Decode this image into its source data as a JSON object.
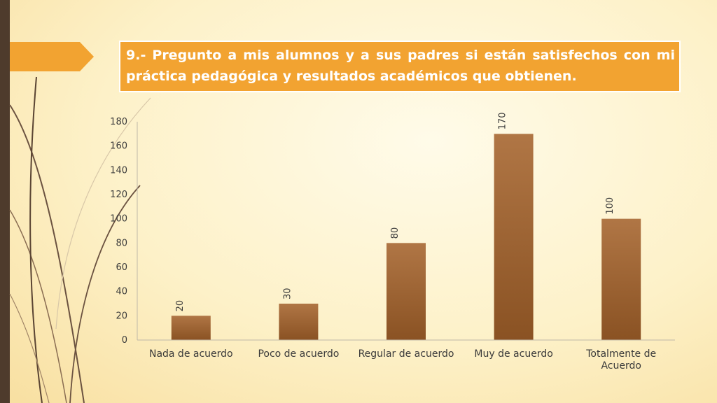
{
  "slide": {
    "title": "9.-  Pregunto a mis alumnos y a sus padres si están satisfechos con mi práctica pedagógica y resultados académicos que obtienen."
  },
  "colors": {
    "bar_top": "#b07645",
    "bar_bottom": "#8a5223",
    "title_bg": "#f2a331",
    "left_bar": "#4e3b2c"
  },
  "chart_data": {
    "type": "bar",
    "title": "",
    "xlabel": "",
    "ylabel": "",
    "categories": [
      "Nada de acuerdo",
      "Poco de acuerdo",
      "Regular de acuerdo",
      "Muy de acuerdo",
      "Totalmente de Acuerdo"
    ],
    "values": [
      20,
      30,
      80,
      170,
      100
    ],
    "data_labels": [
      "20",
      "30",
      "80",
      "170",
      "100"
    ],
    "ylim": [
      0,
      180
    ],
    "yticks": [
      0,
      20,
      40,
      60,
      80,
      100,
      120,
      140,
      160,
      180
    ],
    "grid": false,
    "legend": "none"
  }
}
